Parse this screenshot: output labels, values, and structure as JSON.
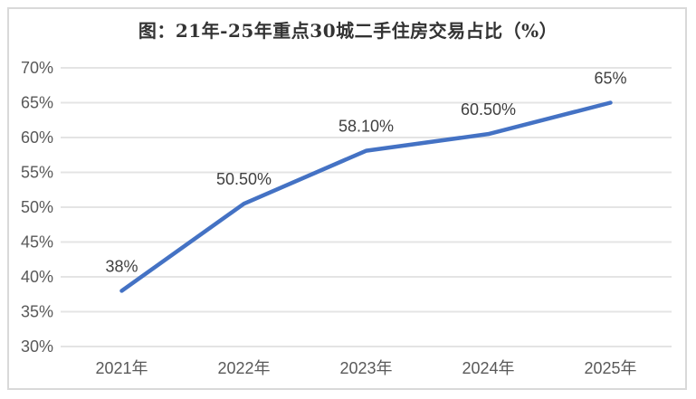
{
  "chart": {
    "accent_color": "#4472C4",
    "gridline_color": "#E4E4E4",
    "axis_label_color": "#595959",
    "data_label_color": "#404040",
    "title_color": "#333333",
    "border_color": "#D9D9D9",
    "background": "#ffffff"
  },
  "chart_data": {
    "type": "line",
    "title": "图：21年-25年重点30城二手住房交易占比（%）",
    "categories": [
      "2021年",
      "2022年",
      "2023年",
      "2024年",
      "2025年"
    ],
    "values": [
      38,
      50.5,
      58.1,
      60.5,
      65
    ],
    "data_labels": [
      "38%",
      "50.50%",
      "58.10%",
      "60.50%",
      "65%"
    ],
    "series_name": "重点30城二手住房交易占比",
    "xlabel": "",
    "ylabel": "",
    "ylim": [
      30,
      70
    ],
    "ytick_step": 5,
    "ytick_labels": [
      "30%",
      "35%",
      "40%",
      "45%",
      "50%",
      "55%",
      "60%",
      "65%",
      "70%"
    ],
    "grid": "horizontal",
    "legend": "none",
    "markers": "none"
  }
}
